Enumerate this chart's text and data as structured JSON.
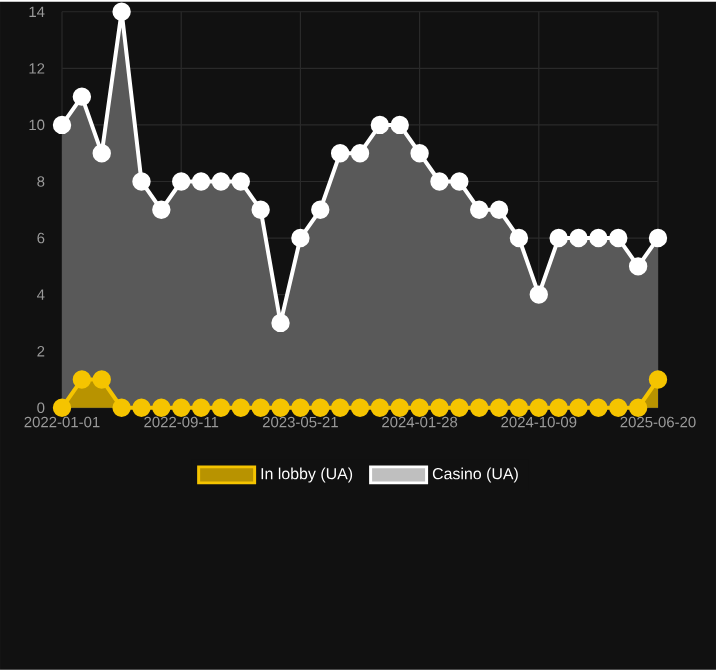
{
  "chart_data": {
    "type": "area",
    "categories": [
      "2022-01-01",
      null,
      null,
      null,
      null,
      null,
      "2022-09-11",
      null,
      null,
      null,
      null,
      null,
      "2023-05-21",
      null,
      null,
      null,
      null,
      null,
      "2024-01-28",
      null,
      null,
      null,
      null,
      null,
      "2024-10-09",
      null,
      null,
      null,
      null,
      null,
      "2025-06-20"
    ],
    "series": [
      {
        "name": "In lobby (UA)",
        "color": "#f5c400",
        "values": [
          0,
          1,
          1,
          0,
          0,
          0,
          0,
          0,
          0,
          0,
          0,
          0,
          0,
          0,
          0,
          0,
          0,
          0,
          0,
          0,
          0,
          0,
          0,
          0,
          0,
          0,
          0,
          0,
          0,
          0,
          1
        ]
      },
      {
        "name": "Casino (UA)",
        "color": "#ffffff",
        "values": [
          10,
          11,
          9,
          14,
          8,
          7,
          8,
          8,
          8,
          8,
          7,
          3,
          6,
          7,
          9,
          9,
          10,
          10,
          9,
          8,
          8,
          7,
          7,
          6,
          4,
          6,
          6,
          6,
          6,
          5,
          6
        ]
      }
    ],
    "ylim": [
      0,
      14
    ],
    "yticks": [
      0,
      2,
      4,
      6,
      8,
      10,
      12,
      14
    ],
    "grid": true,
    "legend": "bottom",
    "marker": "circle"
  }
}
